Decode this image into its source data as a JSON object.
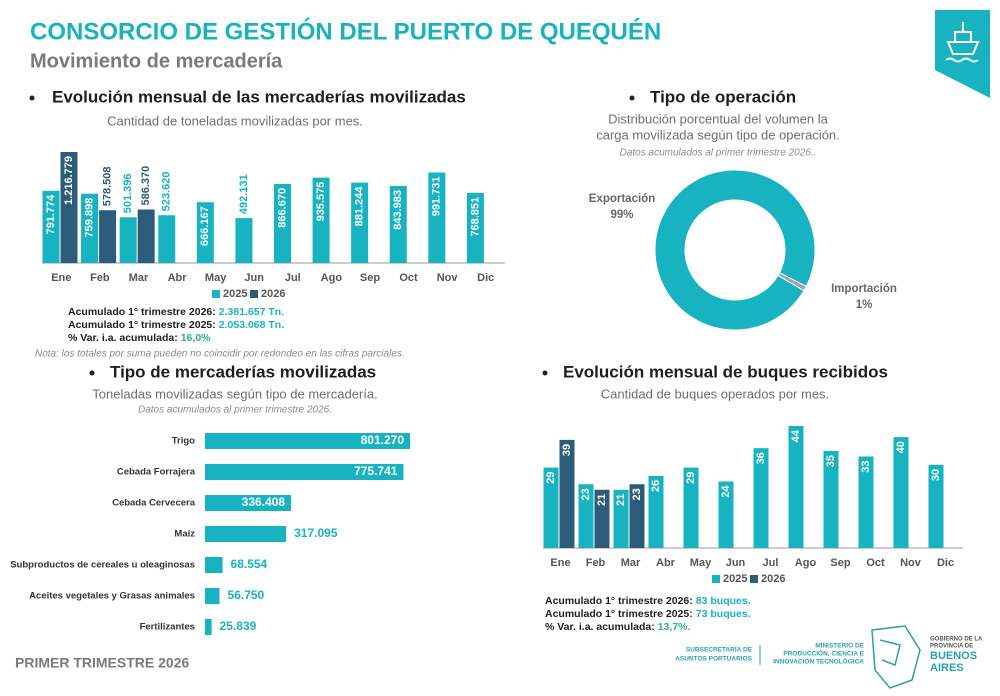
{
  "header": {
    "title": "CONSORCIO DE GESTIÓN DEL PUERTO DE QUEQUÉN",
    "subtitle": "Movimiento de mercadería"
  },
  "chart_data": [
    {
      "type": "grouped-bar",
      "title": "Evolución mensual de las mercaderías movilizadas",
      "subtitle": "Cantidad de toneladas movilizadas por mes.",
      "categories": [
        "Ene",
        "Feb",
        "Mar",
        "Abr",
        "May",
        "Jun",
        "Jul",
        "Ago",
        "Sep",
        "Oct",
        "Nov",
        "Dic"
      ],
      "series": [
        {
          "name": "2025",
          "color": "#17b3c1",
          "values": [
            791774,
            759898,
            501396,
            523620,
            666167,
            492131,
            866670,
            935575,
            881244,
            843983,
            991731,
            768851
          ],
          "value_labels": [
            "791.774",
            "759.898",
            "501.396",
            "523.620",
            "666.167",
            "492.131",
            "866.670",
            "935.575",
            "881.244",
            "843.983",
            "991.731",
            "768.851"
          ]
        },
        {
          "name": "2026",
          "color": "#2d5b7a",
          "values": [
            1216779,
            578508,
            586370,
            null,
            null,
            null,
            null,
            null,
            null,
            null,
            null,
            null
          ],
          "value_labels": [
            "1.216.779",
            "578.508",
            "586.370",
            null,
            null,
            null,
            null,
            null,
            null,
            null,
            null,
            null
          ]
        }
      ],
      "annotations": [
        {
          "label": "Acumulado 1° trimestre 2026:",
          "value": "2.381.657 Tn.",
          "color": "#17b3c1"
        },
        {
          "label": "Acumulado 1° trimestre 2025:",
          "value": "2.053.068 Tn.",
          "color": "#17b3c1"
        },
        {
          "label": "% Var. i.a. acumulada:",
          "value": "16,0%",
          "color": "#2db37a"
        }
      ],
      "note": "Nota: los totales por suma pueden no coincidir por redondeo en las cifras parciales."
    },
    {
      "type": "donut",
      "title": "Tipo de operación",
      "subtitle": [
        "Distribución porcentual del volumen la",
        "carga movilizada según tipo de operación."
      ],
      "note": "Datos acumulados al primer trimestre 2026..",
      "categories": [
        "Exportación",
        "Importación"
      ],
      "values": [
        99,
        1
      ],
      "value_labels": [
        "99%",
        "1%"
      ],
      "colors": [
        "#17b3c1",
        "#9aa3a8"
      ]
    },
    {
      "type": "hbar",
      "title": "Tipo de mercaderías movilizadas",
      "subtitle": "Toneladas movilizadas según tipo de mercadería.",
      "note": "Datos acumulados al primer trimestre 2026.",
      "categories": [
        "Trigo",
        "Cebada Forrajera",
        "Cebada Cervecera",
        "Maíz",
        "Subproductos de cereales u oleaginosas",
        "Aceites vegetales y Grasas animales",
        "Fertilizantes"
      ],
      "values": [
        801270,
        775741,
        336408,
        317095,
        68554,
        56750,
        25839
      ],
      "value_labels": [
        "801.270",
        "775.741",
        "336.408",
        "317.095",
        "68.554",
        "56.750",
        "25.839"
      ],
      "color": "#17b3c1"
    },
    {
      "type": "grouped-bar",
      "title": "Evolución mensual de buques recibidos",
      "subtitle": "Cantidad de buques operados por mes.",
      "categories": [
        "Ene",
        "Feb",
        "Mar",
        "Abr",
        "May",
        "Jun",
        "Jul",
        "Ago",
        "Sep",
        "Oct",
        "Nov",
        "Dic"
      ],
      "series": [
        {
          "name": "2025",
          "color": "#17b3c1",
          "values": [
            29,
            23,
            21,
            26,
            29,
            24,
            36,
            44,
            35,
            33,
            40,
            30
          ]
        },
        {
          "name": "2026",
          "color": "#2d5b7a",
          "values": [
            39,
            21,
            23,
            null,
            null,
            null,
            null,
            null,
            null,
            null,
            null,
            null
          ]
        }
      ],
      "annotations": [
        {
          "label": "Acumulado 1° trimestre 2026:",
          "value": "83 buques.",
          "color": "#17b3c1"
        },
        {
          "label": "Acumulado 1° trimestre 2025:",
          "value": "73 buques.",
          "color": "#17b3c1"
        },
        {
          "label": "% Var. i.a. acumulada:",
          "value": "13,7%.",
          "color": "#2db37a"
        }
      ]
    }
  ],
  "footer": {
    "period": "PRIMER TRIMESTRE 2026",
    "logo1": [
      "SUBSECRETARÍA DE",
      "ASUNTOS PORTUARIOS"
    ],
    "logo2": [
      "MINISTERIO DE",
      "PRODUCCIÓN, CIENCIA E",
      "INNOVACIÓN TECNOLÓGICA"
    ],
    "logo3": [
      "GOBIERNO DE LA",
      "PROVINCIA DE",
      "BUENOS",
      "AIRES"
    ]
  }
}
